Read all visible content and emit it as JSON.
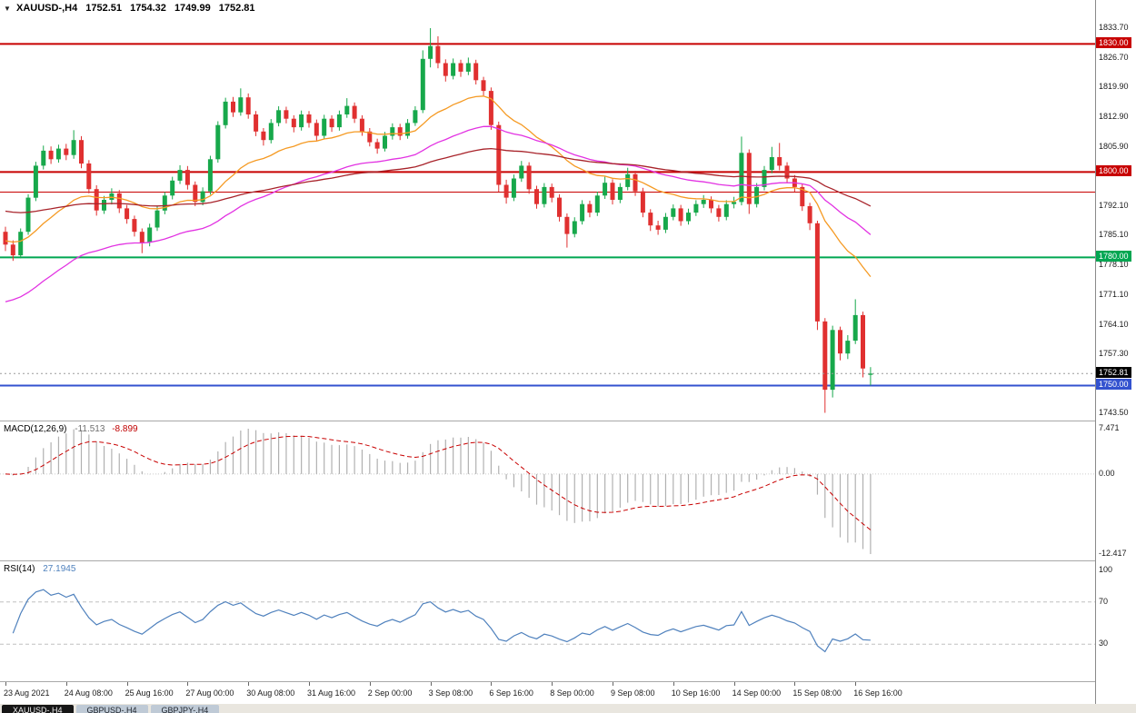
{
  "header": {
    "menu_icon": "▼",
    "symbol_period": "XAUUSD-,H4",
    "ohlc": {
      "open": "1752.51",
      "high": "1754.32",
      "low": "1749.99",
      "close": "1752.81"
    }
  },
  "macd_header": {
    "title": "MACD(12,26,9)",
    "main_value": "-11.513",
    "signal_value": "-8.899"
  },
  "rsi_header": {
    "title": "RSI(14)",
    "value": "27.1945"
  },
  "price_axis": {
    "ticks": [
      {
        "text": "1833.70",
        "price": 1833.7
      },
      {
        "text": "1826.70",
        "price": 1826.7
      },
      {
        "text": "1819.90",
        "price": 1819.9
      },
      {
        "text": "1812.90",
        "price": 1812.9
      },
      {
        "text": "1805.90",
        "price": 1805.9
      },
      {
        "text": "1792.10",
        "price": 1792.1
      },
      {
        "text": "1785.10",
        "price": 1785.1
      },
      {
        "text": "1778.10",
        "price": 1778.1
      },
      {
        "text": "1771.10",
        "price": 1771.1
      },
      {
        "text": "1764.10",
        "price": 1764.1
      },
      {
        "text": "1757.30",
        "price": 1757.3
      },
      {
        "text": "1743.50",
        "price": 1743.5
      }
    ],
    "level_labels": [
      {
        "text": "1830.00",
        "price": 1830.0,
        "bg": "#c80000"
      },
      {
        "text": "1800.00",
        "price": 1800.0,
        "bg": "#c80000"
      },
      {
        "text": "1780.00",
        "price": 1780.0,
        "bg": "#00a651"
      },
      {
        "text": "1750.00",
        "price": 1750.0,
        "bg": "#3352cf"
      }
    ],
    "current": {
      "text": "1752.81",
      "price": 1752.81,
      "bg": "#000000"
    }
  },
  "macd_axis": [
    "7.471",
    "0.00",
    "-12.417"
  ],
  "rsi_axis": [
    {
      "text": "100",
      "value": 100
    },
    {
      "text": "70",
      "value": 70
    },
    {
      "text": "30",
      "value": 30
    }
  ],
  "time_axis": [
    {
      "i": 0,
      "label": "23 Aug 2021"
    },
    {
      "i": 8,
      "label": "24 Aug 08:00"
    },
    {
      "i": 16,
      "label": "25 Aug 16:00"
    },
    {
      "i": 24,
      "label": "27 Aug 00:00"
    },
    {
      "i": 32,
      "label": "30 Aug 08:00"
    },
    {
      "i": 40,
      "label": "31 Aug 16:00"
    },
    {
      "i": 48,
      "label": "2 Sep 00:00"
    },
    {
      "i": 56,
      "label": "3 Sep 08:00"
    },
    {
      "i": 64,
      "label": "6 Sep 16:00"
    },
    {
      "i": 72,
      "label": "8 Sep 00:00"
    },
    {
      "i": 80,
      "label": "9 Sep 08:00"
    },
    {
      "i": 88,
      "label": "10 Sep 16:00"
    },
    {
      "i": 96,
      "label": "14 Sep 00:00"
    },
    {
      "i": 104,
      "label": "15 Sep 08:00"
    },
    {
      "i": 112,
      "label": "16 Sep 16:00"
    }
  ],
  "bottom_tabs": [
    {
      "label": "XAUUSD-,H4",
      "active": true
    },
    {
      "label": "GBPUSD-,H4",
      "active": false
    },
    {
      "label": "GBPJPY-,H4",
      "active": false
    }
  ],
  "colors": {
    "bull": "#17a84b",
    "bear": "#e03030",
    "macd_hist": "#b0b0b0",
    "macd_signal": "#c80000",
    "rsi_line": "#4f81bd",
    "level_dash": "#c0c0c0",
    "current_line": "#9a9a9a"
  },
  "chart_data": {
    "type": "candlestick",
    "symbol": "XAUUSD-",
    "timeframe": "H4",
    "title": "XAUUSD-,H4 1752.51 1754.32 1749.99 1752.81",
    "price_range": {
      "min": 1743.5,
      "max": 1833.7
    },
    "current_price": 1752.81,
    "ohlc": [
      [
        1786.0,
        1787.2,
        1781.5,
        1783.0
      ],
      [
        1783.0,
        1784.0,
        1779.2,
        1780.5
      ],
      [
        1780.5,
        1786.8,
        1779.8,
        1786.0
      ],
      [
        1786.0,
        1794.8,
        1785.3,
        1794.0
      ],
      [
        1794.0,
        1802.4,
        1793.2,
        1801.5
      ],
      [
        1801.5,
        1806.2,
        1800.6,
        1805.0
      ],
      [
        1805.0,
        1806.0,
        1801.9,
        1803.0
      ],
      [
        1803.0,
        1806.4,
        1802.2,
        1805.5
      ],
      [
        1805.5,
        1806.6,
        1802.8,
        1804.0
      ],
      [
        1804.0,
        1809.8,
        1803.1,
        1807.5
      ],
      [
        1807.5,
        1808.4,
        1800.9,
        1802.0
      ],
      [
        1802.0,
        1802.8,
        1795.0,
        1796.0
      ],
      [
        1796.0,
        1796.9,
        1789.8,
        1791.0
      ],
      [
        1791.0,
        1794.4,
        1790.2,
        1793.5
      ],
      [
        1793.5,
        1796.2,
        1792.4,
        1795.0
      ],
      [
        1795.0,
        1795.8,
        1790.4,
        1791.5
      ],
      [
        1791.5,
        1792.3,
        1787.9,
        1789.0
      ],
      [
        1789.0,
        1789.8,
        1784.9,
        1786.0
      ],
      [
        1786.0,
        1786.8,
        1781.0,
        1783.5
      ],
      [
        1783.5,
        1787.9,
        1782.6,
        1787.0
      ],
      [
        1787.0,
        1791.9,
        1786.2,
        1791.0
      ],
      [
        1791.0,
        1795.3,
        1790.1,
        1794.5
      ],
      [
        1794.5,
        1798.9,
        1793.6,
        1798.0
      ],
      [
        1798.0,
        1801.6,
        1797.2,
        1800.5
      ],
      [
        1800.5,
        1801.4,
        1795.9,
        1797.0
      ],
      [
        1797.0,
        1797.8,
        1792.0,
        1793.0
      ],
      [
        1793.0,
        1796.4,
        1792.2,
        1795.5
      ],
      [
        1795.5,
        1803.8,
        1794.7,
        1803.0
      ],
      [
        1803.0,
        1811.9,
        1802.2,
        1811.0
      ],
      [
        1811.0,
        1817.4,
        1810.2,
        1816.5
      ],
      [
        1816.5,
        1817.6,
        1812.9,
        1814.0
      ],
      [
        1814.0,
        1819.6,
        1813.2,
        1817.5
      ],
      [
        1817.5,
        1818.4,
        1812.5,
        1813.5
      ],
      [
        1813.5,
        1814.3,
        1808.4,
        1809.5
      ],
      [
        1809.5,
        1810.3,
        1806.2,
        1807.5
      ],
      [
        1807.5,
        1812.4,
        1806.7,
        1811.5
      ],
      [
        1811.5,
        1815.4,
        1810.7,
        1814.5
      ],
      [
        1814.5,
        1815.3,
        1811.4,
        1812.5
      ],
      [
        1812.5,
        1813.3,
        1809.3,
        1810.5
      ],
      [
        1810.5,
        1814.4,
        1809.7,
        1813.5
      ],
      [
        1813.5,
        1814.3,
        1810.4,
        1811.5
      ],
      [
        1811.5,
        1812.3,
        1807.4,
        1808.5
      ],
      [
        1808.5,
        1813.4,
        1807.7,
        1812.5
      ],
      [
        1812.5,
        1813.3,
        1809.4,
        1810.5
      ],
      [
        1810.5,
        1814.4,
        1809.7,
        1813.5
      ],
      [
        1813.5,
        1817.3,
        1812.7,
        1815.5
      ],
      [
        1815.5,
        1816.3,
        1811.5,
        1812.5
      ],
      [
        1812.5,
        1813.3,
        1808.5,
        1809.5
      ],
      [
        1809.5,
        1810.3,
        1806.0,
        1807.0
      ],
      [
        1807.0,
        1807.8,
        1804.3,
        1805.5
      ],
      [
        1805.5,
        1809.4,
        1804.8,
        1808.5
      ],
      [
        1808.5,
        1811.4,
        1807.6,
        1810.5
      ],
      [
        1810.5,
        1811.3,
        1807.5,
        1808.5
      ],
      [
        1808.5,
        1812.4,
        1807.8,
        1811.5
      ],
      [
        1811.5,
        1815.4,
        1810.8,
        1814.5
      ],
      [
        1814.5,
        1828.5,
        1813.8,
        1826.5
      ],
      [
        1826.5,
        1833.7,
        1824.5,
        1829.5
      ],
      [
        1829.5,
        1831.8,
        1824.3,
        1825.5
      ],
      [
        1825.5,
        1826.4,
        1821.2,
        1822.5
      ],
      [
        1822.5,
        1826.6,
        1821.7,
        1825.5
      ],
      [
        1825.5,
        1826.3,
        1822.3,
        1823.5
      ],
      [
        1823.5,
        1826.8,
        1822.7,
        1825.5
      ],
      [
        1825.5,
        1826.3,
        1820.5,
        1821.5
      ],
      [
        1821.5,
        1822.3,
        1817.9,
        1819.0
      ],
      [
        1819.0,
        1819.8,
        1809.9,
        1811.0
      ],
      [
        1811.0,
        1811.8,
        1795.4,
        1797.0
      ],
      [
        1797.0,
        1798.2,
        1792.6,
        1794.0
      ],
      [
        1794.0,
        1799.4,
        1793.2,
        1798.5
      ],
      [
        1798.5,
        1802.6,
        1797.7,
        1801.5
      ],
      [
        1801.5,
        1802.3,
        1794.9,
        1796.0
      ],
      [
        1796.0,
        1796.8,
        1791.4,
        1792.5
      ],
      [
        1792.5,
        1797.4,
        1791.7,
        1796.5
      ],
      [
        1796.5,
        1797.3,
        1792.9,
        1794.0
      ],
      [
        1794.0,
        1794.8,
        1788.4,
        1789.5
      ],
      [
        1789.5,
        1790.3,
        1782.3,
        1785.5
      ],
      [
        1785.5,
        1789.4,
        1784.7,
        1788.5
      ],
      [
        1788.5,
        1793.4,
        1787.7,
        1792.5
      ],
      [
        1792.5,
        1793.3,
        1789.4,
        1790.5
      ],
      [
        1790.5,
        1795.4,
        1789.7,
        1794.5
      ],
      [
        1794.5,
        1798.9,
        1793.7,
        1797.5
      ],
      [
        1797.5,
        1798.3,
        1792.4,
        1793.5
      ],
      [
        1793.5,
        1797.4,
        1792.7,
        1796.5
      ],
      [
        1796.5,
        1801.0,
        1795.7,
        1799.5
      ],
      [
        1799.5,
        1800.3,
        1794.4,
        1795.5
      ],
      [
        1795.5,
        1796.3,
        1789.4,
        1790.5
      ],
      [
        1790.5,
        1791.3,
        1786.2,
        1787.5
      ],
      [
        1787.5,
        1788.6,
        1785.3,
        1786.5
      ],
      [
        1786.5,
        1790.4,
        1785.7,
        1789.5
      ],
      [
        1789.5,
        1792.4,
        1788.7,
        1791.5
      ],
      [
        1791.5,
        1792.3,
        1787.4,
        1788.5
      ],
      [
        1788.5,
        1791.4,
        1787.7,
        1790.5
      ],
      [
        1790.5,
        1793.4,
        1789.7,
        1792.5
      ],
      [
        1792.5,
        1794.6,
        1791.6,
        1793.5
      ],
      [
        1793.5,
        1794.3,
        1790.4,
        1791.5
      ],
      [
        1791.5,
        1792.3,
        1788.4,
        1789.5
      ],
      [
        1789.5,
        1793.4,
        1788.7,
        1792.5
      ],
      [
        1792.5,
        1794.2,
        1791.5,
        1793.0
      ],
      [
        1793.0,
        1808.3,
        1792.2,
        1804.5
      ],
      [
        1804.5,
        1805.3,
        1790.2,
        1792.5
      ],
      [
        1792.5,
        1797.4,
        1791.7,
        1796.5
      ],
      [
        1796.5,
        1801.4,
        1795.7,
        1800.5
      ],
      [
        1800.5,
        1805.9,
        1799.7,
        1803.5
      ],
      [
        1803.5,
        1806.8,
        1800.4,
        1801.5
      ],
      [
        1801.5,
        1802.3,
        1797.4,
        1798.5
      ],
      [
        1798.5,
        1799.3,
        1795.4,
        1796.5
      ],
      [
        1796.5,
        1797.3,
        1790.9,
        1792.0
      ],
      [
        1792.0,
        1792.8,
        1786.4,
        1788.0
      ],
      [
        1788.0,
        1788.6,
        1763.0,
        1765.0
      ],
      [
        1765.0,
        1765.8,
        1743.6,
        1749.0
      ],
      [
        1749.0,
        1764.0,
        1747.2,
        1763.0
      ],
      [
        1763.0,
        1763.8,
        1755.9,
        1757.5
      ],
      [
        1757.5,
        1761.8,
        1756.2,
        1760.5
      ],
      [
        1760.5,
        1770.2,
        1759.7,
        1766.5
      ],
      [
        1766.5,
        1767.3,
        1751.9,
        1754.0
      ],
      [
        1752.5,
        1754.3,
        1750.0,
        1752.8
      ]
    ],
    "hlines": [
      {
        "price": 1830.0,
        "color": "#c80000",
        "width": 2
      },
      {
        "price": 1800.0,
        "color": "#c80000",
        "width": 2
      },
      {
        "price": 1795.3,
        "color": "#c80000",
        "width": 1
      },
      {
        "price": 1780.0,
        "color": "#00a651",
        "width": 2
      },
      {
        "price": 1750.0,
        "color": "#3352cf",
        "width": 2
      }
    ],
    "moving_averages": [
      {
        "name": "ma-fast-orange",
        "period": 21,
        "seed": 1784,
        "color": "#f59a23"
      },
      {
        "name": "ma-mid-magenta",
        "period": 45,
        "seed": 1769,
        "color": "#e232e2"
      },
      {
        "name": "ma-slow-darkred",
        "period": 90,
        "seed": 1791,
        "color": "#a8232a"
      }
    ],
    "indicators": {
      "macd": {
        "type": "macd",
        "fast": 12,
        "slow": 26,
        "signal": 9,
        "last_main": -11.513,
        "last_signal": -8.899,
        "axis_labels": [
          "7.471",
          "0.00",
          "-12.417"
        ]
      },
      "rsi": {
        "type": "rsi",
        "period": 14,
        "last": 27.1945,
        "levels": [
          70,
          30
        ]
      }
    }
  }
}
